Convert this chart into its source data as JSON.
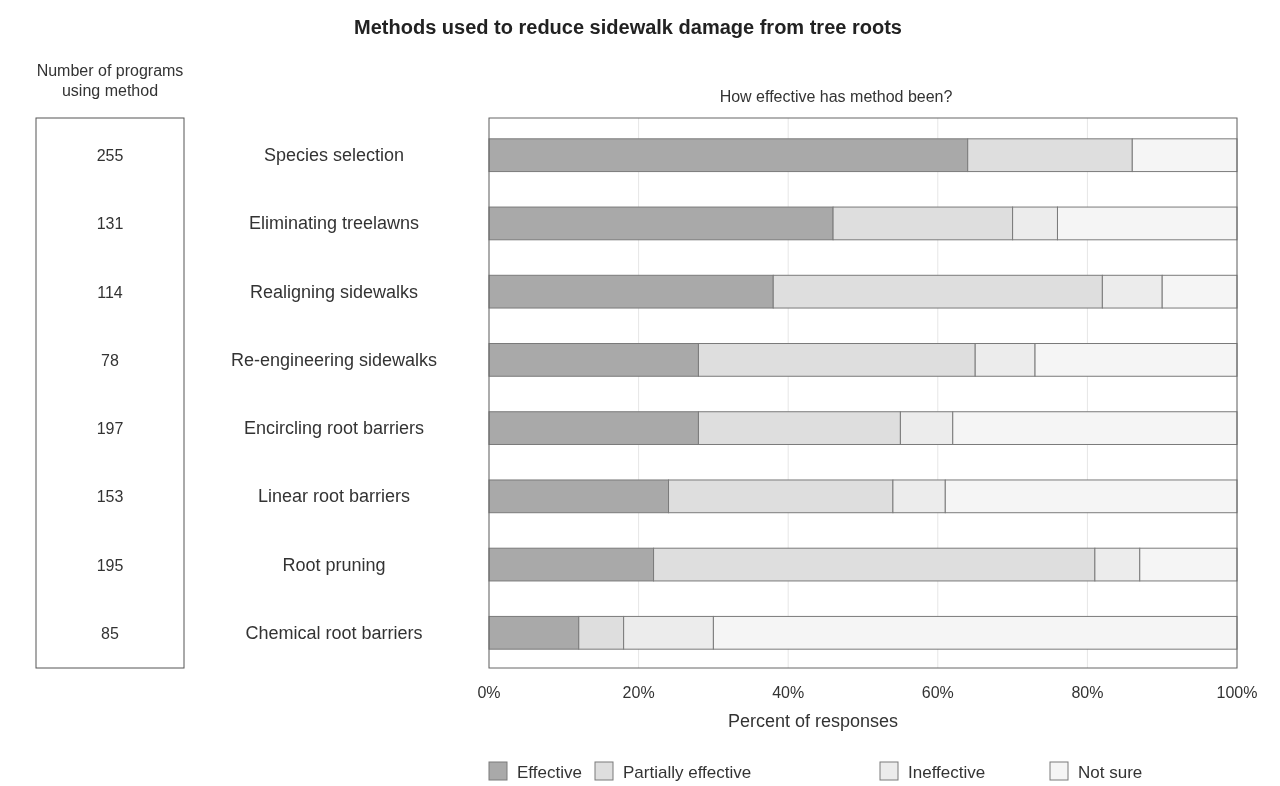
{
  "chart_data": [
    {
      "type": "other",
      "title": "Number of programs using method",
      "values": [
        255,
        131,
        114,
        78,
        197,
        153,
        195,
        85
      ],
      "data_labels": true
    },
    {
      "type": "bar",
      "title": "Methods used to reduce sidewalk damage from tree roots",
      "subtitle": "How effective has method been?",
      "xlabel": "Percent of responses",
      "categories": [
        "Species selection",
        "Eliminating treelawns",
        "Realigning sidewalks",
        "Re-engineering sidewalks",
        "Encircling root barriers",
        "Linear root barriers",
        "Root pruning",
        "Chemical root barriers"
      ],
      "orientation": "horizontal",
      "stacked": true,
      "series": [
        {
          "name": "Effective",
          "color": "#a9a9a9",
          "values": [
            64,
            46,
            38,
            28,
            28,
            24,
            22,
            12
          ]
        },
        {
          "name": "Partially effective",
          "color": "#dedede",
          "values": [
            22,
            24,
            44,
            37,
            27,
            30,
            59,
            6
          ]
        },
        {
          "name": "Ineffective",
          "color": "#ececec",
          "values": [
            0,
            6,
            8,
            8,
            7,
            7,
            6,
            12
          ]
        },
        {
          "name": "Not sure",
          "color": "#f5f5f5",
          "values": [
            14,
            24,
            10,
            27,
            38,
            39,
            13,
            70
          ]
        }
      ],
      "xlim": [
        0,
        100
      ],
      "xticks": [
        {
          "value": 0,
          "label": "0%"
        },
        {
          "value": 20,
          "label": "20%"
        },
        {
          "value": 40,
          "label": "40%"
        },
        {
          "value": 60,
          "label": "60%"
        },
        {
          "value": 80,
          "label": "80%"
        },
        {
          "value": 100,
          "label": "100%"
        }
      ],
      "grid": "x",
      "legend": "bottom"
    }
  ]
}
